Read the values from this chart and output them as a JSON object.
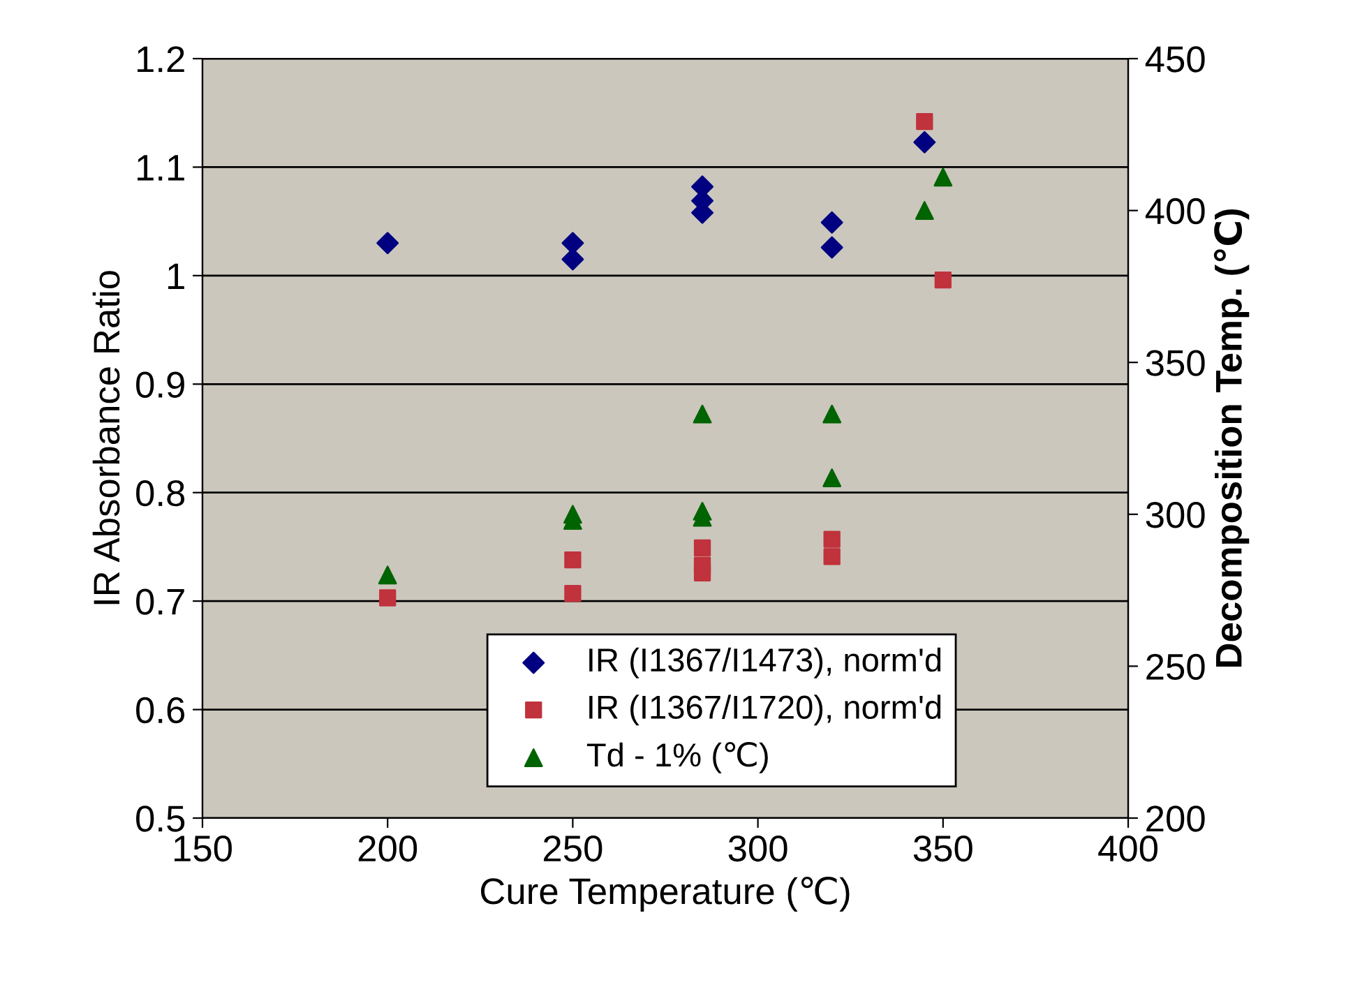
{
  "chart_data": {
    "type": "scatter",
    "xlabel": "Cure Temperature (℃)",
    "ylabel": "IR Absorbance Ratio",
    "y2label": "Decomposition Temp. (℃)",
    "xlim": [
      150,
      400
    ],
    "xticks": [
      150,
      200,
      250,
      300,
      350,
      400
    ],
    "ylim": [
      0.5,
      1.2
    ],
    "yticks": [
      0.5,
      0.6,
      0.7,
      0.8,
      0.9,
      1,
      1.1,
      1.2
    ],
    "y2lim": [
      200,
      450
    ],
    "y2ticks": [
      200,
      250,
      300,
      350,
      400,
      450
    ],
    "grid": "y",
    "legend": "bottom",
    "series": [
      {
        "name": "IR (I1367/I1473), norm'd",
        "color": "#000080",
        "marker": "diamond",
        "x": [
          200,
          250,
          250,
          285,
          285,
          285,
          320,
          320,
          345
        ],
        "values": [
          1.03,
          1.03,
          1.015,
          1.082,
          1.069,
          1.058,
          1.049,
          1.026,
          1.123
        ]
      },
      {
        "name": "IR (I1367/I1720), norm'd",
        "color": "#c0323c",
        "marker": "square",
        "x": [
          200,
          250,
          250,
          285,
          285,
          285,
          320,
          320,
          345,
          350
        ],
        "values": [
          0.703,
          0.738,
          0.707,
          0.749,
          0.726,
          0.733,
          0.757,
          0.741,
          1.142,
          0.996
        ]
      },
      {
        "name": "Td - 1% (℃)",
        "color": "#006400",
        "marker": "triangle",
        "axis": "y2",
        "x": [
          200,
          250,
          250,
          285,
          285,
          285,
          320,
          320,
          345,
          350
        ],
        "values": [
          280,
          300,
          298,
          333,
          301,
          299,
          333,
          312,
          400,
          411
        ]
      }
    ]
  }
}
